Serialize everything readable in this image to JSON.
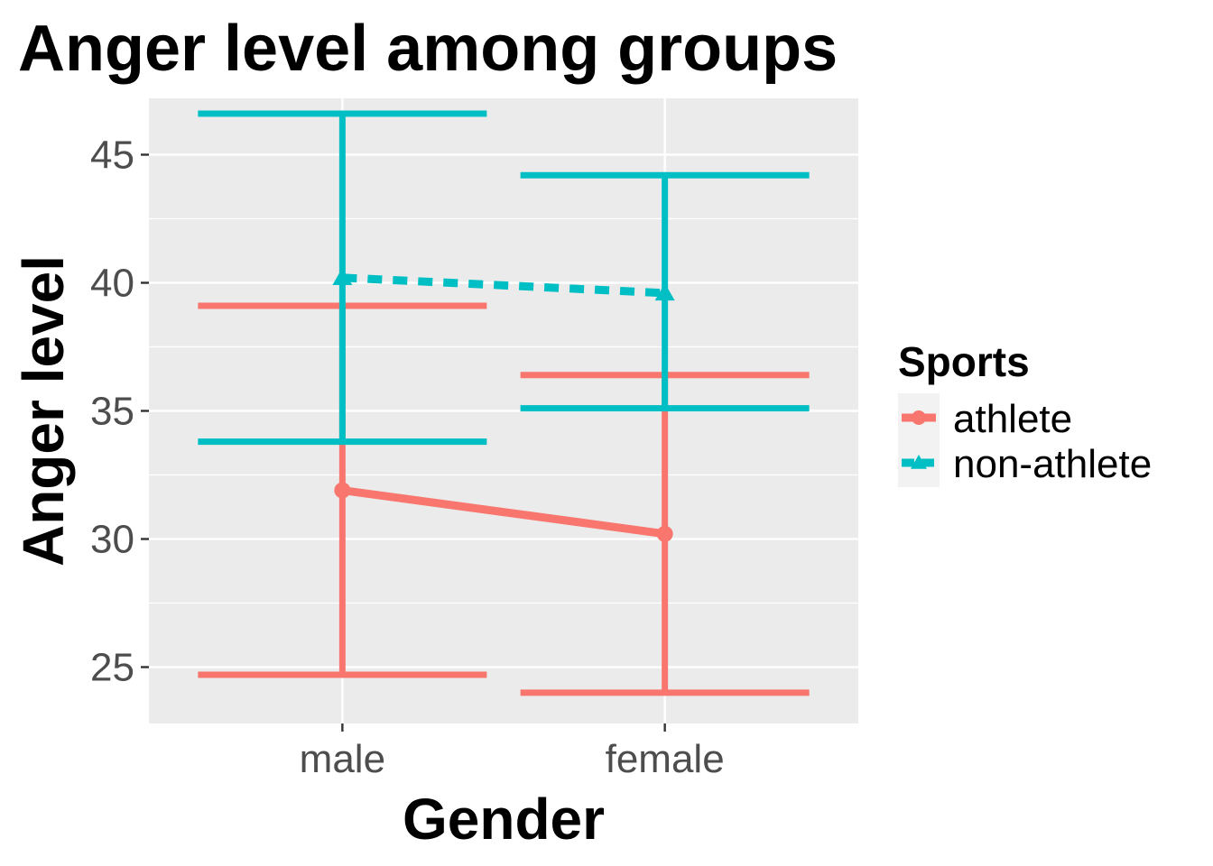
{
  "chart_data": {
    "type": "line",
    "title": "Anger level among groups",
    "xlabel": "Gender",
    "ylabel": "Anger level",
    "categories": [
      "male",
      "female"
    ],
    "ylim": [
      22.8,
      47.2
    ],
    "yticks": [
      25,
      30,
      35,
      40,
      45
    ],
    "grid": true,
    "legend": {
      "title": "Sports",
      "placement": "right"
    },
    "series": [
      {
        "name": "athlete",
        "color": "#F8766D",
        "line_style": "solid",
        "marker": "circle",
        "means": [
          31.9,
          30.2
        ],
        "lower": [
          24.7,
          24.0
        ],
        "upper": [
          39.1,
          36.4
        ]
      },
      {
        "name": "non-athlete",
        "color": "#00BFC4",
        "line_style": "dashed",
        "marker": "triangle",
        "means": [
          40.2,
          39.6
        ],
        "lower": [
          33.8,
          35.1
        ],
        "upper": [
          46.6,
          44.2
        ]
      }
    ]
  }
}
